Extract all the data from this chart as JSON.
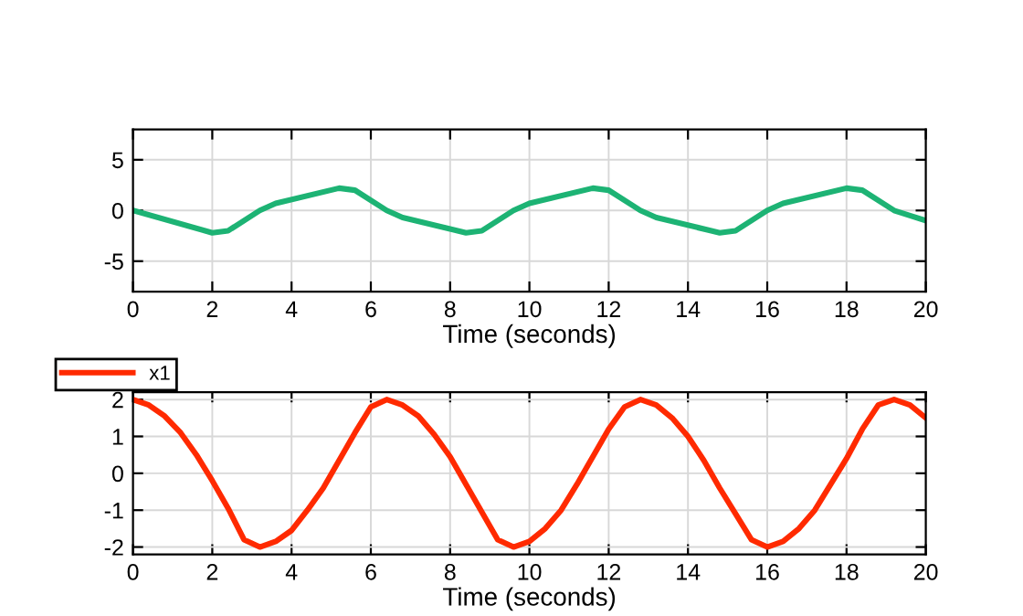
{
  "chart_data": [
    {
      "type": "line",
      "xlabel": "Time (seconds)",
      "x": [
        0,
        2,
        2.4,
        3.2,
        3.6,
        5.2,
        5.6,
        6.4,
        6.8,
        8.4,
        8.8,
        9.6,
        10,
        11.6,
        12,
        12.8,
        13.2,
        14.8,
        15.2,
        16,
        16.4,
        18,
        18.4,
        19.2,
        19.6,
        20
      ],
      "series": [
        {
          "color": "#1db374",
          "values": [
            0,
            -2.2,
            -2.0,
            0,
            0.7,
            2.2,
            2.0,
            0,
            -0.7,
            -2.2,
            -2.0,
            0,
            0.7,
            2.2,
            2.0,
            0,
            -0.7,
            -2.2,
            -2.0,
            0,
            0.7,
            2.2,
            2.0,
            0,
            -0.5,
            -1.0
          ]
        }
      ],
      "xlim": [
        0,
        20
      ],
      "xticks": [
        0,
        2,
        4,
        6,
        8,
        10,
        12,
        14,
        16,
        18,
        20
      ],
      "ylim": [
        -8,
        8
      ],
      "yticks": [
        -5,
        0,
        5
      ],
      "grid": true,
      "legend": false,
      "line_style": "solid"
    },
    {
      "type": "line",
      "xlabel": "Time (seconds)",
      "x": [
        0,
        0.4,
        0.8,
        1.2,
        1.6,
        2.0,
        2.4,
        2.8,
        3.2,
        3.6,
        4.0,
        4.4,
        4.8,
        5.2,
        5.6,
        6.0,
        6.4,
        6.8,
        7.2,
        7.6,
        8.0,
        8.4,
        8.8,
        9.2,
        9.6,
        10.0,
        10.4,
        10.8,
        11.2,
        11.6,
        12.0,
        12.4,
        12.8,
        13.2,
        13.6,
        14.0,
        14.4,
        14.8,
        15.2,
        15.6,
        16.0,
        16.4,
        16.8,
        17.2,
        17.6,
        18.0,
        18.4,
        18.8,
        19.2,
        19.6,
        20.0
      ],
      "series": [
        {
          "name": "x1",
          "color": "#ff2a00",
          "values": [
            2.0,
            1.85,
            1.55,
            1.1,
            0.5,
            -0.2,
            -0.95,
            -1.8,
            -2.0,
            -1.85,
            -1.55,
            -1.0,
            -0.4,
            0.35,
            1.1,
            1.8,
            2.0,
            1.85,
            1.55,
            1.05,
            0.45,
            -0.3,
            -1.05,
            -1.8,
            -2.0,
            -1.85,
            -1.5,
            -1.0,
            -0.3,
            0.45,
            1.2,
            1.8,
            2.0,
            1.85,
            1.5,
            1.0,
            0.35,
            -0.4,
            -1.1,
            -1.8,
            -2.0,
            -1.85,
            -1.5,
            -1.0,
            -0.3,
            0.4,
            1.2,
            1.85,
            2.0,
            1.85,
            1.5
          ]
        }
      ],
      "xlim": [
        0,
        20
      ],
      "xticks": [
        0,
        2,
        4,
        6,
        8,
        10,
        12,
        14,
        16,
        18,
        20
      ],
      "ylim": [
        -2.2,
        2.2
      ],
      "yticks": [
        -2,
        -1,
        0,
        1,
        2
      ],
      "grid": true,
      "legend": "top left",
      "line_style": "solid"
    }
  ]
}
